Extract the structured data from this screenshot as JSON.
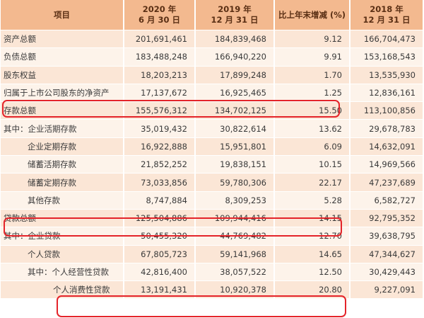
{
  "header": {
    "item": "项目",
    "c2020": [
      "2020 年",
      "6 月 30 日"
    ],
    "c2019": [
      "2019 年",
      "12 月 31 日"
    ],
    "change": "比上年末增减 (%)",
    "c2018": [
      "2018 年",
      "12 月 31 日"
    ]
  },
  "rows": [
    {
      "label": "资产总额",
      "indent": 0,
      "v2020": "201,691,461",
      "v2019": "184,839,468",
      "change": "9.12",
      "v2018": "166,704,473"
    },
    {
      "label": "负债总额",
      "indent": 0,
      "v2020": "183,488,248",
      "v2019": "166,940,220",
      "change": "9.91",
      "v2018": "153,168,543"
    },
    {
      "label": "股东权益",
      "indent": 0,
      "v2020": "18,203,213",
      "v2019": "17,899,248",
      "change": "1.70",
      "v2018": "13,535,930"
    },
    {
      "label": "归属于上市公司股东的净资产",
      "indent": 0,
      "v2020": "17,137,672",
      "v2019": "16,925,465",
      "change": "1.25",
      "v2018": "12,836,161"
    },
    {
      "label": "存款总额",
      "indent": 0,
      "v2020": "155,576,312",
      "v2019": "134,702,125",
      "change": "15.50",
      "v2018": "113,100,856"
    },
    {
      "label": "其中：企业活期存款",
      "indent": 0,
      "v2020": "35,019,432",
      "v2019": "30,822,614",
      "change": "13.62",
      "v2018": "29,678,783"
    },
    {
      "label": "企业定期存款",
      "indent": 1,
      "v2020": "16,922,888",
      "v2019": "15,951,801",
      "change": "6.09",
      "v2018": "14,632,091"
    },
    {
      "label": "储蓄活期存款",
      "indent": 1,
      "v2020": "21,852,252",
      "v2019": "19,838,151",
      "change": "10.15",
      "v2018": "14,969,566"
    },
    {
      "label": "储蓄定期存款",
      "indent": 1,
      "v2020": "73,033,856",
      "v2019": "59,780,306",
      "change": "22.17",
      "v2018": "47,237,689"
    },
    {
      "label": "其他存款",
      "indent": 1,
      "v2020": "8,747,884",
      "v2019": "8,309,253",
      "change": "5.28",
      "v2018": "6,582,727"
    },
    {
      "label": "贷款总额",
      "indent": 0,
      "v2020": "125,504,886",
      "v2019": "109,944,416",
      "change": "14.15",
      "v2018": "92,795,352"
    },
    {
      "label": "其中：企业贷款",
      "indent": 0,
      "v2020": "50,455,320",
      "v2019": "44,769,482",
      "change": "12.70",
      "v2018": "39,638,795"
    },
    {
      "label": "个人贷款",
      "indent": 1,
      "v2020": "67,805,723",
      "v2019": "59,141,968",
      "change": "14.65",
      "v2018": "47,344,627"
    },
    {
      "label": "其中：个人经营性贷款",
      "indent": 1,
      "v2020": "42,816,400",
      "v2019": "38,057,522",
      "change": "12.50",
      "v2018": "30,429,443"
    },
    {
      "label": "个人消费性贷款",
      "indent": 2,
      "v2020": "13,191,431",
      "v2019": "10,920,378",
      "change": "20.80",
      "v2018": "9,227,091"
    }
  ],
  "colors": {
    "header_bg": "#f3b98f",
    "row_odd": "#fbe6d6",
    "row_even": "#fdf3ea",
    "highlight": "#e4242a"
  }
}
